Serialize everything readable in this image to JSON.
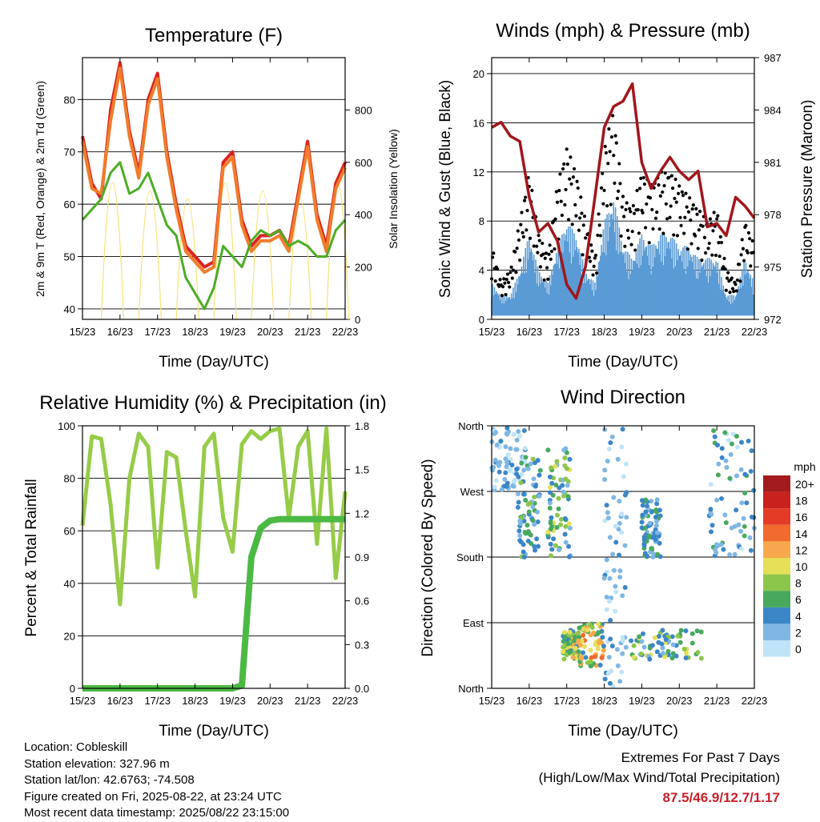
{
  "x_ticks": [
    "15/23",
    "16/23",
    "17/23",
    "18/23",
    "19/23",
    "20/23",
    "21/23",
    "22/23"
  ],
  "colors": {
    "temp2m": "#d8241f",
    "temp9m": "#f07d2c",
    "dewpoint": "#4dac26",
    "solar": "#f7e27a",
    "gust": "#000000",
    "wind": "#5a9bd5",
    "pressure": "#a1161b",
    "rh": "#96cc48",
    "precip": "#4cb944",
    "extremes": "#c8202a"
  },
  "chart_data": [
    {
      "id": "temperature",
      "type": "line",
      "title": "Temperature (F)",
      "xlabel": "Time (Day/UTC)",
      "ylabel": "2m & 9m T (Red, Orange) & 2m Td (Green)",
      "y2label": "Solar Insolation (Yellow)",
      "ylim": [
        38,
        88
      ],
      "yticks": [
        40,
        50,
        60,
        70,
        80
      ],
      "y2lim": [
        0,
        1000
      ],
      "y2ticks": [
        0,
        200,
        400,
        600,
        800
      ],
      "x": [
        0,
        0.25,
        0.5,
        0.75,
        1,
        1.25,
        1.5,
        1.75,
        2,
        2.25,
        2.5,
        2.75,
        3,
        3.25,
        3.5,
        3.75,
        4,
        4.25,
        4.5,
        4.75,
        5,
        5.25,
        5.5,
        5.75,
        6,
        6.25,
        6.5,
        6.75,
        7
      ],
      "series": [
        {
          "key": "t2",
          "color": "temp2m",
          "values": [
            73,
            64,
            61,
            78,
            87,
            74,
            66,
            80,
            85,
            70,
            60,
            52,
            50,
            48,
            49,
            68,
            70,
            57,
            52,
            54,
            54,
            55,
            52,
            62,
            72,
            58,
            52,
            64,
            68
          ]
        },
        {
          "key": "t9",
          "color": "temp9m",
          "values": [
            72,
            63,
            62,
            76,
            86,
            73,
            65,
            79,
            84,
            69,
            59,
            51,
            49,
            47,
            48,
            67,
            69,
            56,
            51,
            53,
            53,
            54,
            51,
            61,
            71,
            57,
            51,
            63,
            67
          ]
        },
        {
          "key": "td",
          "color": "dewpoint",
          "values": [
            57,
            59,
            61,
            66,
            68,
            62,
            63,
            66,
            61,
            56,
            54,
            46,
            43,
            40,
            44,
            52,
            50,
            48,
            53,
            55,
            54,
            55,
            52,
            53,
            52,
            50,
            50,
            55,
            57
          ]
        }
      ],
      "solar_peaks": [
        0.8,
        1.8,
        2.8,
        3.8,
        4.8,
        5.8,
        6.8
      ]
    },
    {
      "id": "winds",
      "type": "scatter",
      "title": "Winds (mph) & Pressure (mb)",
      "xlabel": "Time (Day/UTC)",
      "ylabel": "Sonic Wind & Gust (Blue, Black)",
      "y2label": "Station Pressure (Maroon)",
      "ylim": [
        0,
        21.3
      ],
      "yticks": [
        0,
        4,
        8,
        12,
        16,
        20
      ],
      "y2lim": [
        972,
        987
      ],
      "y2ticks": [
        972,
        975,
        978,
        981,
        984,
        987
      ],
      "x": [
        0,
        0.25,
        0.5,
        0.75,
        1,
        1.25,
        1.5,
        1.75,
        2,
        2.25,
        2.5,
        2.75,
        3,
        3.25,
        3.5,
        3.75,
        4,
        4.25,
        4.5,
        4.75,
        5,
        5.25,
        5.5,
        5.75,
        6,
        6.25,
        6.5,
        6.75,
        7
      ],
      "series": [
        {
          "key": "gust",
          "color": "gust",
          "values": [
            6,
            3,
            4,
            8,
            12,
            7,
            5,
            11,
            14,
            12,
            8,
            5,
            14,
            17,
            10,
            9,
            12,
            11,
            12,
            12,
            11,
            10,
            9,
            8,
            9,
            4,
            3,
            8,
            6
          ]
        },
        {
          "key": "wind",
          "color": "wind",
          "values": [
            3,
            2,
            2,
            4,
            7,
            4,
            3,
            6,
            8,
            7,
            4,
            3,
            8,
            10,
            6,
            5,
            7,
            6,
            7,
            7,
            6,
            6,
            5,
            5,
            5,
            2,
            2,
            5,
            3
          ]
        },
        {
          "key": "pressure",
          "color": "pressure",
          "values": [
            983,
            983.3,
            982.5,
            982.2,
            979,
            977,
            977.5,
            976.5,
            974,
            973.2,
            975,
            979,
            983,
            984.2,
            984.5,
            985.5,
            981,
            979.5,
            980.5,
            981.3,
            980.5,
            980,
            980.5,
            977.3,
            977.5,
            976.8,
            979,
            978.5,
            977.8
          ]
        }
      ]
    },
    {
      "id": "humidity",
      "type": "line",
      "title": "Relative Humidity (%) & Precipitation (in)",
      "xlabel": "Time (Day/UTC)",
      "ylabel": "Percent & Total Rainfall",
      "ylim": [
        0,
        100
      ],
      "yticks": [
        0,
        20,
        40,
        60,
        80,
        100
      ],
      "y2lim": [
        0,
        1.8
      ],
      "y2ticks": [
        0.0,
        0.3,
        0.6,
        0.9,
        1.2,
        1.5,
        1.8
      ],
      "x": [
        0,
        0.25,
        0.5,
        0.75,
        1,
        1.25,
        1.5,
        1.75,
        2,
        2.25,
        2.5,
        2.75,
        3,
        3.25,
        3.5,
        3.75,
        4,
        4.25,
        4.5,
        4.75,
        5,
        5.25,
        5.5,
        5.75,
        6,
        6.25,
        6.5,
        6.75,
        7
      ],
      "series": [
        {
          "key": "rh",
          "color": "rh",
          "values": [
            62,
            96,
            95,
            70,
            32,
            80,
            97,
            92,
            46,
            90,
            88,
            60,
            35,
            92,
            97,
            65,
            52,
            93,
            98,
            95,
            98,
            99,
            65,
            92,
            98,
            55,
            99,
            42,
            75
          ]
        },
        {
          "key": "precip",
          "color": "precip",
          "values": [
            0,
            0,
            0,
            0,
            0,
            0,
            0,
            0,
            0,
            0,
            0,
            0,
            0,
            0,
            0,
            0,
            0,
            0.02,
            0.9,
            1.1,
            1.15,
            1.16,
            1.16,
            1.16,
            1.16,
            1.16,
            1.16,
            1.16,
            1.16
          ]
        }
      ]
    },
    {
      "id": "direction",
      "type": "scatter",
      "title": "Wind Direction",
      "xlabel": "Time (Day/UTC)",
      "ylabel": "Direction (Colored By Speed)",
      "yticks": [
        "North",
        "East",
        "South",
        "West",
        "North"
      ],
      "legend_title": "mph",
      "legend_labels": [
        "20+",
        "18",
        "16",
        "14",
        "12",
        "10",
        "8",
        "6",
        "4",
        "2",
        "0"
      ],
      "legend_colors": [
        "#a31b1f",
        "#c9221e",
        "#e43b27",
        "#f06b2d",
        "#f8a84c",
        "#e6df58",
        "#8cc64b",
        "#48a95d",
        "#3b86c6",
        "#7fb7e3",
        "#c0e4f7"
      ]
    }
  ],
  "info": {
    "location": "Location: Cobleskill",
    "elevation": "Station elevation: 327.96 m",
    "latlon": "Station lat/lon: 42.6763; -74.508",
    "created": "Figure created on Fri, 2025-08-22, at 23:24 UTC",
    "timestamp": "Most recent data timestamp: 2025/08/22 23:15:00"
  },
  "extremes": {
    "heading": "Extremes For Past 7 Days",
    "subheading": "(High/Low/Max Wind/Total Precipitation)",
    "values": "87.5/46.9/12.7/1.17"
  }
}
